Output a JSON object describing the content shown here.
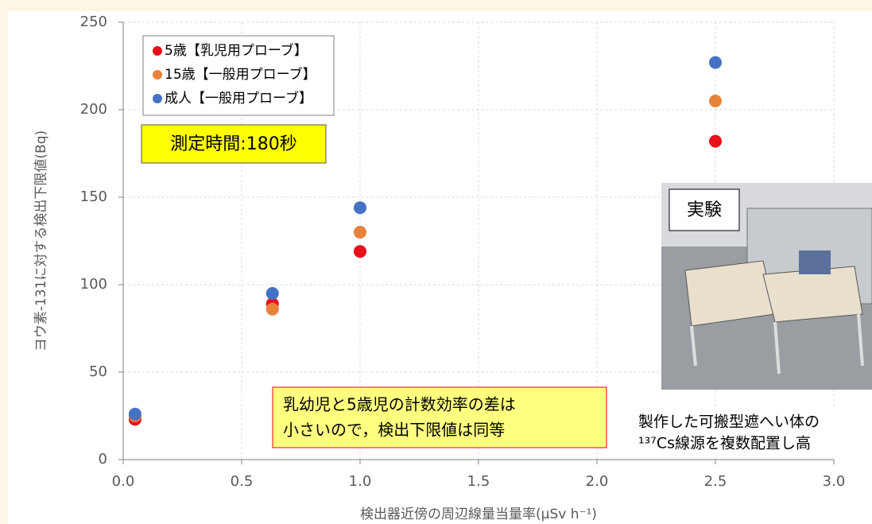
{
  "chart_data": {
    "type": "scatter",
    "xlabel": "検出器近傍の周辺線量当量率(μSv h⁻¹)",
    "ylabel": "ヨウ素-131に対する検出下限値(Bq)",
    "x": [
      0.05,
      0.63,
      1.0,
      2.5
    ],
    "series": [
      {
        "name": "5歳【乳児用プローブ】",
        "color": "#e8101a",
        "values": [
          23,
          89,
          119,
          182
        ]
      },
      {
        "name": "15歳【一般用プローブ】",
        "color": "#e8823a",
        "values": [
          25,
          86,
          130,
          205
        ]
      },
      {
        "name": "成人【一般用プローブ】",
        "color": "#4472c4",
        "values": [
          26,
          95,
          144,
          227
        ]
      }
    ],
    "xlim": [
      0,
      3
    ],
    "xticks": [
      {
        "value": 0,
        "label": "0.0"
      },
      0.5,
      {
        "value": 1,
        "label": "1.0"
      },
      1.5,
      {
        "value": 2,
        "label": "2.0"
      },
      2.5,
      {
        "value": 3,
        "label": "3.0"
      }
    ],
    "ylim": [
      0,
      250
    ],
    "yticks": [
      0,
      50,
      100,
      150,
      200,
      250
    ],
    "grid": true,
    "legend": "upper left",
    "note_time": "測定時間:180秒",
    "note_efficiency": [
      "乳幼児と5歳児の計数効率の差は",
      "小さいので，検出下限値は同等"
    ],
    "photo_label": "実験",
    "photo_caption": [
      "製作した可搬型遮へい体の",
      "¹³⁷Cs線源を複数配置し高"
    ]
  }
}
